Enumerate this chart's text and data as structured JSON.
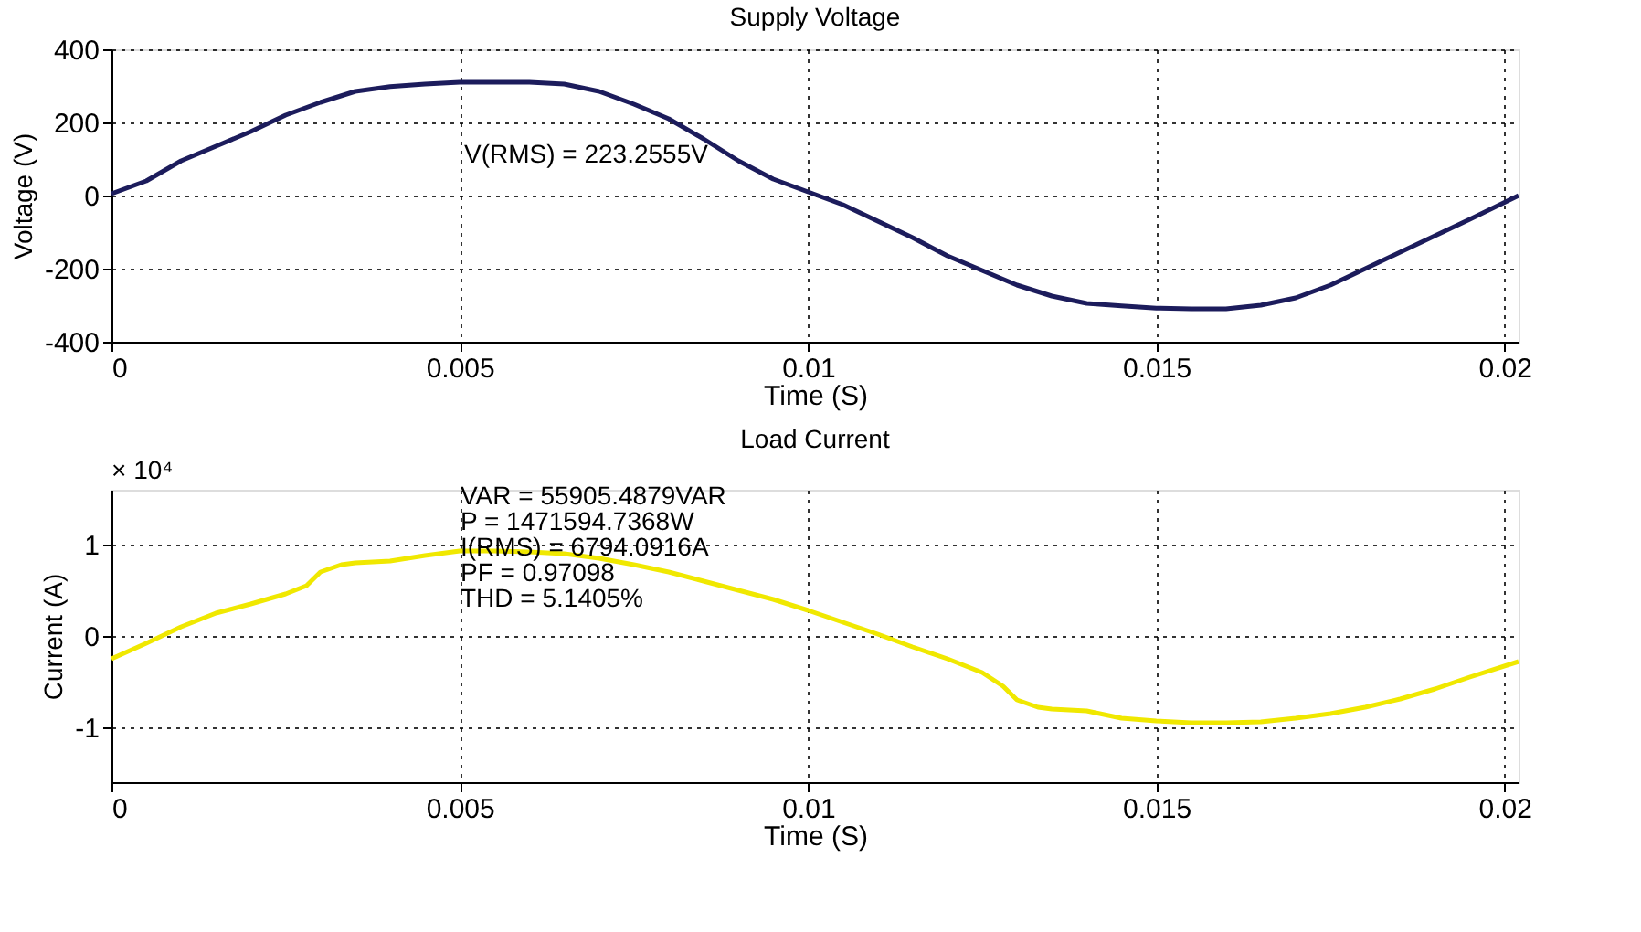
{
  "chart_data": [
    {
      "type": "line",
      "title": "Supply Voltage",
      "xlabel": "Time (S)",
      "ylabel": "Voltage (V)",
      "x": [
        0,
        0.0005,
        0.001,
        0.0015,
        0.002,
        0.0025,
        0.003,
        0.0035,
        0.004,
        0.0045,
        0.005,
        0.0055,
        0.006,
        0.0065,
        0.007,
        0.0075,
        0.008,
        0.0085,
        0.009,
        0.0095,
        0.01,
        0.0105,
        0.011,
        0.0115,
        0.012,
        0.0125,
        0.013,
        0.0135,
        0.014,
        0.0145,
        0.015,
        0.0155,
        0.016,
        0.0165,
        0.017,
        0.0175,
        0.018,
        0.0185,
        0.019,
        0.0195,
        0.0202
      ],
      "series": [
        {
          "color": "#1c1c5c",
          "values": [
            5,
            40,
            95,
            135,
            175,
            220,
            255,
            285,
            298,
            305,
            310,
            310,
            310,
            305,
            285,
            250,
            210,
            155,
            95,
            45,
            10,
            -25,
            -70,
            -115,
            -165,
            -205,
            -245,
            -275,
            -295,
            -302,
            -308,
            -310,
            -310,
            -300,
            -280,
            -245,
            -200,
            -155,
            -110,
            -65,
            0
          ]
        }
      ],
      "xlim": [
        0,
        0.0202
      ],
      "xticks": [
        0,
        0.005,
        0.01,
        0.015,
        0.02
      ],
      "ylim": [
        -400,
        400
      ],
      "yticks": [
        -400,
        -200,
        0,
        200,
        400
      ],
      "grid": true,
      "line_style": "solid",
      "annotations": [
        "V(RMS) = 223.2555V"
      ]
    },
    {
      "type": "line",
      "title": "Load Current",
      "xlabel": "Time (S)",
      "ylabel": "Current (A)",
      "x": [
        0,
        0.0005,
        0.001,
        0.0015,
        0.002,
        0.0025,
        0.0028,
        0.003,
        0.0033,
        0.0035,
        0.004,
        0.0045,
        0.005,
        0.0055,
        0.006,
        0.0065,
        0.007,
        0.0075,
        0.008,
        0.0085,
        0.009,
        0.0095,
        0.01,
        0.0105,
        0.011,
        0.0115,
        0.012,
        0.0125,
        0.0128,
        0.013,
        0.0133,
        0.0135,
        0.014,
        0.0145,
        0.015,
        0.0155,
        0.016,
        0.0165,
        0.017,
        0.0175,
        0.018,
        0.0185,
        0.019,
        0.0195,
        0.0202
      ],
      "series": [
        {
          "color": "#f0e800",
          "values": [
            -0.25,
            -0.08,
            0.1,
            0.25,
            0.35,
            0.46,
            0.55,
            0.7,
            0.78,
            0.8,
            0.82,
            0.88,
            0.93,
            0.93,
            0.92,
            0.9,
            0.85,
            0.78,
            0.7,
            0.6,
            0.5,
            0.4,
            0.28,
            0.15,
            0.02,
            -0.12,
            -0.25,
            -0.4,
            -0.55,
            -0.7,
            -0.78,
            -0.8,
            -0.82,
            -0.9,
            -0.93,
            -0.95,
            -0.95,
            -0.94,
            -0.9,
            -0.85,
            -0.78,
            -0.69,
            -0.58,
            -0.45,
            -0.28
          ]
        }
      ],
      "xlim": [
        0,
        0.0202
      ],
      "xticks": [
        0,
        0.005,
        0.01,
        0.015,
        0.02
      ],
      "ylim": [
        -1.6,
        1.6
      ],
      "yticks": [
        -1,
        0,
        1
      ],
      "grid": true,
      "line_style": "solid",
      "annotations": [
        "× 10⁴",
        "VAR = 55905.4879VAR",
        "P = 1471594.7368W",
        "I(RMS) = 6794.0916A",
        "PF = 0.97098",
        "THD = 5.1405%"
      ]
    }
  ]
}
